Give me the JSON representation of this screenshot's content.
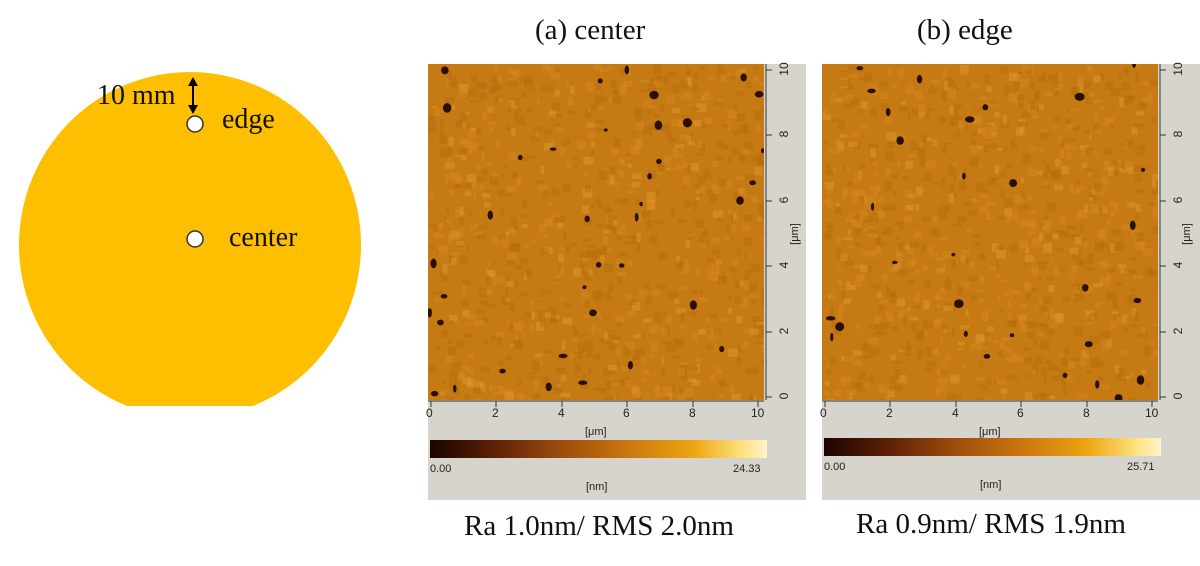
{
  "wafer": {
    "dim_label": "10 mm",
    "edge_label": "edge",
    "center_label": "center",
    "fill_color": "#fdbf00"
  },
  "panels": [
    {
      "title": "(a) center",
      "x_ticks": [
        "0",
        "2",
        "4",
        "6",
        "8",
        "10"
      ],
      "y_ticks": [
        "0",
        "2",
        "4",
        "6",
        "8",
        "10"
      ],
      "axis_unit": "[μm]",
      "cbar_min": "0.00",
      "cbar_max": "24.33",
      "cbar_unit": "[nm]",
      "caption": "Ra 1.0nm/ RMS 2.0nm"
    },
    {
      "title": "(b) edge",
      "x_ticks": [
        "0",
        "2",
        "4",
        "6",
        "8",
        "10"
      ],
      "y_ticks": [
        "0",
        "2",
        "4",
        "6",
        "8",
        "10"
      ],
      "axis_unit": "[μm]",
      "cbar_min": "0.00",
      "cbar_max": "25.71",
      "cbar_unit": "[nm]",
      "caption": "Ra 0.9nm/ RMS 1.9nm"
    }
  ],
  "colors": {
    "surface": "#c57a14",
    "pit": "#2a1004",
    "frame": "#d7d4cd"
  }
}
